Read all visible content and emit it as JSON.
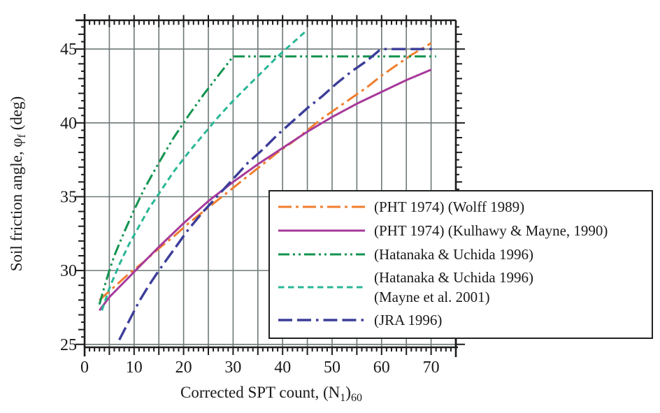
{
  "figure": {
    "background": "#ffffff",
    "frame_color": "#1c1c1c",
    "grid_color": "#6e7878",
    "text_color": "#1a1a1a"
  },
  "chart_data": {
    "type": "line",
    "title": "",
    "xlabel": "Corrected SPT count, (N1)60",
    "ylabel": "Soil friction angle, phi_f (deg)",
    "xlabel_parts": [
      {
        "t": "Corrected SPT count, (N"
      },
      {
        "t": "1",
        "sub": true
      },
      {
        "t": ")"
      },
      {
        "t": "60",
        "sub": true
      }
    ],
    "ylabel_parts": [
      {
        "t": "Soil friction angle, φ"
      },
      {
        "t": "f",
        "sub": true
      },
      {
        "t": " (deg)"
      }
    ],
    "xlim": [
      0,
      75
    ],
    "ylim": [
      24.8,
      46.95
    ],
    "grid": "on",
    "grid_x_step": 5,
    "grid_y_step": 5,
    "legend_position": "lower-right overlay box",
    "x_tick_values": [
      0,
      10,
      20,
      30,
      40,
      50,
      60,
      70
    ],
    "x_tick_labels": [
      "0",
      "10",
      "20",
      "30",
      "40",
      "50",
      "60",
      "70"
    ],
    "y_tick_values": [
      25,
      30,
      35,
      40,
      45
    ],
    "y_tick_labels": [
      "25",
      "30",
      "35",
      "40",
      "45"
    ],
    "series": [
      {
        "name": "(PHT 1974) (Wolff 1989)",
        "legend_lines": [
          "(PHT 1974) (Wolff 1989)"
        ],
        "color": "#F07E2E",
        "style": "dash_dot",
        "dasharray": "19 6 4 6",
        "width": 3,
        "points": [
          [
            3,
            28.0
          ],
          [
            6,
            28.9
          ],
          [
            9,
            29.8
          ],
          [
            12,
            30.6
          ],
          [
            15,
            31.5
          ],
          [
            18,
            32.3
          ],
          [
            21,
            33.2
          ],
          [
            24,
            34.0
          ],
          [
            27,
            34.8
          ],
          [
            30,
            35.6
          ],
          [
            33,
            36.4
          ],
          [
            36,
            37.2
          ],
          [
            39,
            38.0
          ],
          [
            42,
            38.7
          ],
          [
            45,
            39.5
          ],
          [
            48,
            40.3
          ],
          [
            51,
            41.0
          ],
          [
            54,
            41.7
          ],
          [
            57,
            42.4
          ],
          [
            60,
            43.2
          ],
          [
            63,
            43.9
          ],
          [
            66,
            44.6
          ],
          [
            70,
            45.4
          ]
        ]
      },
      {
        "name": "(PHT 1974) (Kulhawy & Mayne, 1990)",
        "legend_lines": [
          "(PHT 1974) (Kulhawy & Mayne, 1990)"
        ],
        "color": "#A73A9B",
        "style": "solid",
        "dasharray": "",
        "width": 3,
        "points": [
          [
            3,
            27.3
          ],
          [
            5,
            28.2
          ],
          [
            10,
            29.9
          ],
          [
            15,
            31.6
          ],
          [
            20,
            33.2
          ],
          [
            25,
            34.7
          ],
          [
            30,
            36.0
          ],
          [
            35,
            37.2
          ],
          [
            40,
            38.3
          ],
          [
            45,
            39.4
          ],
          [
            50,
            40.4
          ],
          [
            55,
            41.3
          ],
          [
            60,
            42.1
          ],
          [
            65,
            42.9
          ],
          [
            70,
            43.6
          ]
        ]
      },
      {
        "name": "(Hatanaka & Uchida 1996)",
        "legend_lines": [
          "(Hatanaka & Uchida 1996)"
        ],
        "color": "#12934F",
        "style": "dash_dot_dot",
        "dasharray": "16 5 3 5 3 5",
        "width": 3,
        "points": [
          [
            3,
            27.7
          ],
          [
            4,
            28.9
          ],
          [
            5,
            30.0
          ],
          [
            6,
            31.0
          ],
          [
            8,
            32.6
          ],
          [
            10,
            34.1
          ],
          [
            12,
            35.5
          ],
          [
            15,
            37.3
          ],
          [
            18,
            39.0
          ],
          [
            21,
            40.5
          ],
          [
            24,
            41.9
          ],
          [
            27,
            43.2
          ],
          [
            30,
            44.5
          ],
          [
            71,
            44.5
          ]
        ]
      },
      {
        "name": "(Hatanaka & Uchida 1996) (Mayne et al. 2001)",
        "legend_lines": [
          "(Hatanaka & Uchida 1996)",
          "(Mayne et al. 2001)"
        ],
        "color": "#29B795",
        "style": "dashed",
        "dasharray": "8.5 5.5",
        "width": 3,
        "points": [
          [
            3.5,
            27.3
          ],
          [
            5,
            28.8
          ],
          [
            7,
            30.4
          ],
          [
            9,
            31.8
          ],
          [
            11,
            33.0
          ],
          [
            13,
            34.2
          ],
          [
            15,
            35.2
          ],
          [
            18,
            36.7
          ],
          [
            21,
            38.0
          ],
          [
            24,
            39.2
          ],
          [
            27,
            40.4
          ],
          [
            30,
            41.5
          ],
          [
            33,
            42.5
          ],
          [
            36,
            43.5
          ],
          [
            39,
            44.5
          ],
          [
            42,
            45.4
          ],
          [
            45,
            46.3
          ]
        ]
      },
      {
        "name": "(JRA 1996)",
        "legend_lines": [
          "(JRA 1996)"
        ],
        "color": "#3C3D99",
        "style": "long_dash_dot",
        "dasharray": "20 7 20 7 3.5 7",
        "width": 3.4,
        "points": [
          [
            7,
            25.3
          ],
          [
            9,
            26.6
          ],
          [
            11,
            27.9
          ],
          [
            13,
            29.0
          ],
          [
            15,
            30.0
          ],
          [
            18,
            31.4
          ],
          [
            21,
            32.8
          ],
          [
            24,
            34.0
          ],
          [
            27,
            35.1
          ],
          [
            30,
            36.2
          ],
          [
            33,
            37.3
          ],
          [
            36,
            38.2
          ],
          [
            39,
            39.2
          ],
          [
            42,
            40.1
          ],
          [
            45,
            41.0
          ],
          [
            48,
            41.8
          ],
          [
            51,
            42.7
          ],
          [
            54,
            43.5
          ],
          [
            57,
            44.2
          ],
          [
            59.5,
            44.9
          ],
          [
            60,
            45.0
          ],
          [
            70.5,
            45.0
          ]
        ]
      }
    ]
  }
}
